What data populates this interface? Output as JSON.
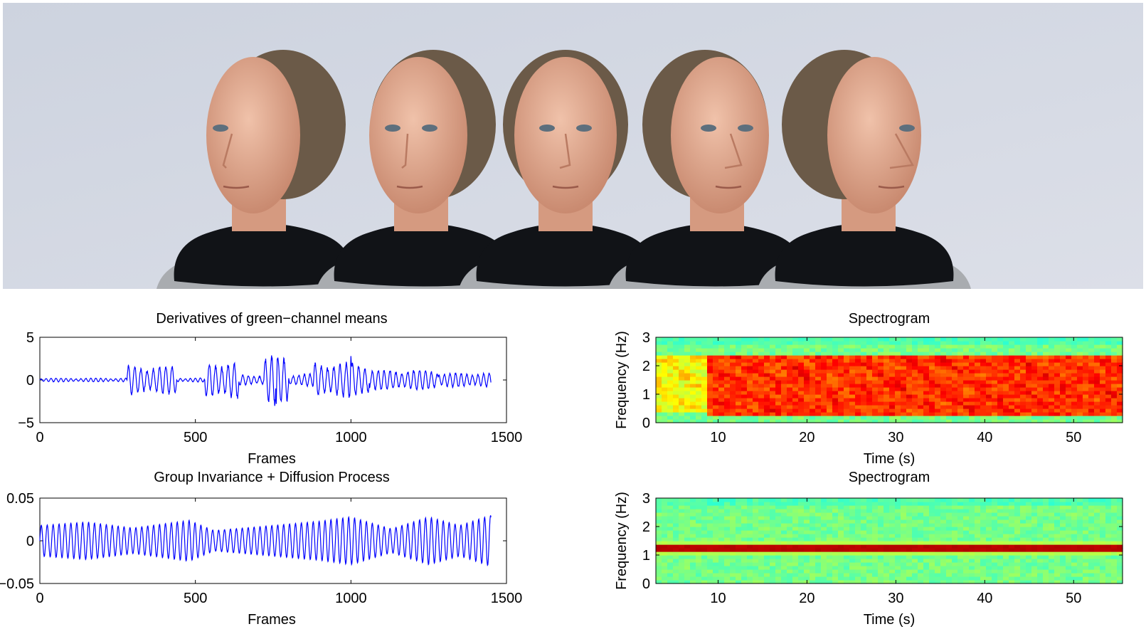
{
  "photo": {
    "subject": "five head poses of the same man",
    "heads": [
      {
        "pose": "profile-left"
      },
      {
        "pose": "three-quarter-left"
      },
      {
        "pose": "frontal"
      },
      {
        "pose": "three-quarter-right"
      },
      {
        "pose": "profile-right"
      }
    ],
    "colors": {
      "wall": "#d4d9e4",
      "skin": "#e2ad93",
      "hair": "#6b5a48",
      "scarf": "#111317",
      "shirt": "#a9acb0"
    }
  },
  "chart_data": [
    {
      "type": "line",
      "title": "Derivatives of green−channel means",
      "xlabel": "Frames",
      "ylabel": "",
      "xlim": [
        0,
        1500
      ],
      "ylim": [
        -5,
        5
      ],
      "xticks": [
        "0",
        "500",
        "1000",
        "1500"
      ],
      "yticks": [
        "−5",
        "0",
        "5"
      ],
      "color": "#0000ff",
      "series": [
        {
          "x_range": [
            0,
            1450
          ],
          "segments": [
            {
              "from": 0,
              "to": 280,
              "amplitude": 0.18,
              "period": 16
            },
            {
              "from": 280,
              "to": 440,
              "amplitude": 1.4,
              "period": 20
            },
            {
              "from": 440,
              "to": 530,
              "amplitude": 0.2,
              "period": 16
            },
            {
              "from": 530,
              "to": 640,
              "amplitude": 1.8,
              "period": 20
            },
            {
              "from": 640,
              "to": 720,
              "amplitude": 0.5,
              "period": 18
            },
            {
              "from": 720,
              "to": 800,
              "amplitude": 2.4,
              "period": 20
            },
            {
              "from": 800,
              "to": 880,
              "amplitude": 0.6,
              "period": 18
            },
            {
              "from": 880,
              "to": 1060,
              "amplitude": 1.7,
              "period": 20
            },
            {
              "from": 1060,
              "to": 1280,
              "amplitude": 1.0,
              "period": 19
            },
            {
              "from": 1280,
              "to": 1450,
              "amplitude": 0.7,
              "period": 18
            }
          ],
          "peaks": [
            {
              "x": 760,
              "y": 3.3
            },
            {
              "x": 760,
              "y": -2.8
            },
            {
              "x": 1000,
              "y": 2.8
            }
          ]
        }
      ]
    },
    {
      "type": "heatmap",
      "title": "Spectrogram",
      "xlabel": "Time (s)",
      "ylabel": "Frequency (Hz)",
      "xlim": [
        3,
        55.5
      ],
      "ylim": [
        0,
        3
      ],
      "xticks": [
        "10",
        "20",
        "30",
        "40",
        "50"
      ],
      "yticks": [
        "0",
        "1",
        "2",
        "3"
      ],
      "colormap": "jet",
      "bands": [
        {
          "t_from": 3,
          "t_to": 9,
          "f_from": 0.4,
          "f_to": 2.4,
          "level": 0.72
        },
        {
          "t_from": 9,
          "t_to": 55.5,
          "f_from": 0.2,
          "f_to": 2.4,
          "level": 0.92
        }
      ]
    },
    {
      "type": "line",
      "title": "Group Invariance + Diffusion Process",
      "xlabel": "Frames",
      "ylabel": "",
      "xlim": [
        0,
        1500
      ],
      "ylim": [
        -0.05,
        0.05
      ],
      "xticks": [
        "0",
        "500",
        "1000",
        "1500"
      ],
      "yticks": [
        "−0.05",
        "0",
        "0.05"
      ],
      "color": "#0000ff",
      "series": [
        {
          "x_range": [
            0,
            1450
          ],
          "period": 19,
          "amplitude_envelope": [
            {
              "x": 0,
              "a": 0.018
            },
            {
              "x": 150,
              "a": 0.022
            },
            {
              "x": 300,
              "a": 0.015
            },
            {
              "x": 480,
              "a": 0.024
            },
            {
              "x": 560,
              "a": 0.012
            },
            {
              "x": 750,
              "a": 0.018
            },
            {
              "x": 900,
              "a": 0.023
            },
            {
              "x": 1000,
              "a": 0.028
            },
            {
              "x": 1130,
              "a": 0.014
            },
            {
              "x": 1250,
              "a": 0.028
            },
            {
              "x": 1350,
              "a": 0.018
            },
            {
              "x": 1450,
              "a": 0.03
            }
          ]
        }
      ]
    },
    {
      "type": "heatmap",
      "title": "Spectrogram",
      "xlabel": "Time (s)",
      "ylabel": "Frequency (Hz)",
      "xlim": [
        3,
        55.5
      ],
      "ylim": [
        0,
        3
      ],
      "xticks": [
        "10",
        "20",
        "30",
        "40",
        "50"
      ],
      "yticks": [
        "0",
        "1",
        "2",
        "3"
      ],
      "colormap": "jet",
      "bands": [
        {
          "t_from": 3,
          "t_to": 55.5,
          "f_center": 1.25,
          "f_halfwidth": 0.2,
          "level": 1.0
        }
      ]
    }
  ]
}
